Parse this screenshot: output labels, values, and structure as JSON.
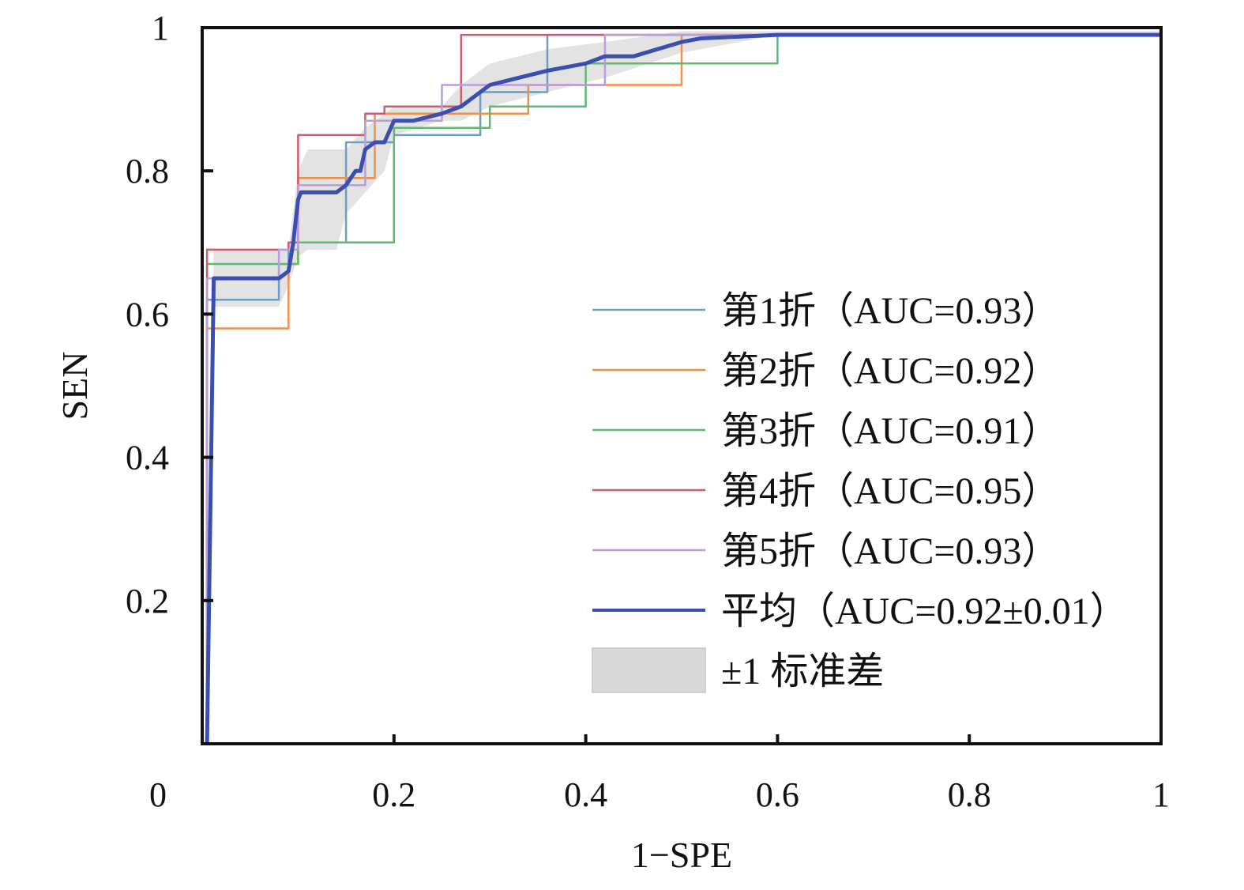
{
  "chart_data": {
    "type": "line",
    "title": "",
    "xlabel": "1−SPE",
    "ylabel": "SEN",
    "xlim": [
      0,
      1
    ],
    "ylim": [
      0,
      1
    ],
    "x_ticks": [
      {
        "value": 0,
        "label": "0"
      },
      {
        "value": 0.2,
        "label": "0.2"
      },
      {
        "value": 0.4,
        "label": "0.4"
      },
      {
        "value": 0.6,
        "label": "0.6"
      },
      {
        "value": 0.8,
        "label": "0.8"
      },
      {
        "value": 1,
        "label": "1"
      }
    ],
    "y_ticks": [
      {
        "value": 0.2,
        "label": "0.2"
      },
      {
        "value": 0.4,
        "label": "0.4"
      },
      {
        "value": 0.6,
        "label": "0.6"
      },
      {
        "value": 0.8,
        "label": "0.8"
      },
      {
        "value": 1,
        "label": "1"
      }
    ],
    "grid": false,
    "legend_position": "lower-right",
    "series": [
      {
        "name": "第1折（AUC=0.93）",
        "color": "#6a9ec4",
        "x": [
          0.005,
          0.005,
          0.08,
          0.08,
          0.09,
          0.09,
          0.15,
          0.15,
          0.2,
          0.2,
          0.29,
          0.29,
          0.36,
          0.36,
          1.0
        ],
        "y": [
          0.0,
          0.62,
          0.62,
          0.67,
          0.67,
          0.7,
          0.7,
          0.84,
          0.84,
          0.85,
          0.85,
          0.91,
          0.91,
          0.99,
          0.99
        ]
      },
      {
        "name": "第2折（AUC=0.92）",
        "color": "#f0904a",
        "x": [
          0.005,
          0.005,
          0.09,
          0.09,
          0.1,
          0.1,
          0.18,
          0.18,
          0.34,
          0.34,
          0.5,
          0.5,
          1.0
        ],
        "y": [
          0.0,
          0.58,
          0.58,
          0.67,
          0.67,
          0.79,
          0.79,
          0.88,
          0.88,
          0.92,
          0.92,
          0.99,
          0.99
        ]
      },
      {
        "name": "第3折（AUC=0.91）",
        "color": "#5dba6e",
        "x": [
          0.005,
          0.005,
          0.1,
          0.1,
          0.2,
          0.2,
          0.3,
          0.3,
          0.4,
          0.4,
          0.6,
          0.6,
          1.0
        ],
        "y": [
          0.0,
          0.67,
          0.67,
          0.7,
          0.7,
          0.86,
          0.86,
          0.89,
          0.89,
          0.95,
          0.95,
          0.99,
          0.99
        ]
      },
      {
        "name": "第4折（AUC=0.95）",
        "color": "#d05a70",
        "x": [
          0.005,
          0.005,
          0.09,
          0.09,
          0.1,
          0.1,
          0.17,
          0.17,
          0.19,
          0.19,
          0.27,
          0.27,
          1.0
        ],
        "y": [
          0.0,
          0.69,
          0.69,
          0.7,
          0.7,
          0.85,
          0.85,
          0.88,
          0.88,
          0.89,
          0.89,
          0.99,
          0.99
        ]
      },
      {
        "name": "第5折（AUC=0.93）",
        "color": "#b89ee0",
        "x": [
          0.005,
          0.005,
          0.08,
          0.08,
          0.1,
          0.1,
          0.17,
          0.17,
          0.25,
          0.25,
          0.42,
          0.42,
          1.0
        ],
        "y": [
          0.0,
          0.65,
          0.65,
          0.69,
          0.69,
          0.78,
          0.78,
          0.87,
          0.87,
          0.92,
          0.92,
          0.99,
          0.99
        ]
      },
      {
        "name": "平均（AUC=0.92±0.01）",
        "color": "#3a4fb0",
        "x": [
          0.005,
          0.012,
          0.08,
          0.085,
          0.09,
          0.095,
          0.1,
          0.103,
          0.11,
          0.14,
          0.15,
          0.16,
          0.165,
          0.17,
          0.18,
          0.19,
          0.2,
          0.22,
          0.25,
          0.27,
          0.28,
          0.3,
          0.33,
          0.36,
          0.4,
          0.42,
          0.45,
          0.5,
          0.52,
          0.6,
          1.0
        ],
        "y": [
          0.0,
          0.65,
          0.65,
          0.655,
          0.66,
          0.7,
          0.76,
          0.77,
          0.77,
          0.77,
          0.78,
          0.8,
          0.8,
          0.83,
          0.84,
          0.84,
          0.87,
          0.87,
          0.88,
          0.89,
          0.9,
          0.92,
          0.93,
          0.94,
          0.95,
          0.96,
          0.96,
          0.98,
          0.985,
          0.99,
          0.99
        ]
      }
    ],
    "band": {
      "name": "±1 标准差",
      "color": "#d9d9d9",
      "x": [
        0.005,
        0.012,
        0.08,
        0.09,
        0.1,
        0.11,
        0.14,
        0.15,
        0.17,
        0.19,
        0.2,
        0.25,
        0.27,
        0.3,
        0.36,
        0.42,
        0.5,
        0.6,
        1.0
      ],
      "lower": [
        0.0,
        0.61,
        0.61,
        0.64,
        0.68,
        0.69,
        0.69,
        0.74,
        0.77,
        0.8,
        0.85,
        0.87,
        0.87,
        0.89,
        0.91,
        0.93,
        0.965,
        0.99,
        0.99
      ],
      "upper": [
        0.02,
        0.69,
        0.69,
        0.69,
        0.8,
        0.83,
        0.83,
        0.83,
        0.86,
        0.88,
        0.89,
        0.89,
        0.92,
        0.95,
        0.97,
        0.98,
        0.995,
        0.995,
        0.995
      ]
    }
  }
}
